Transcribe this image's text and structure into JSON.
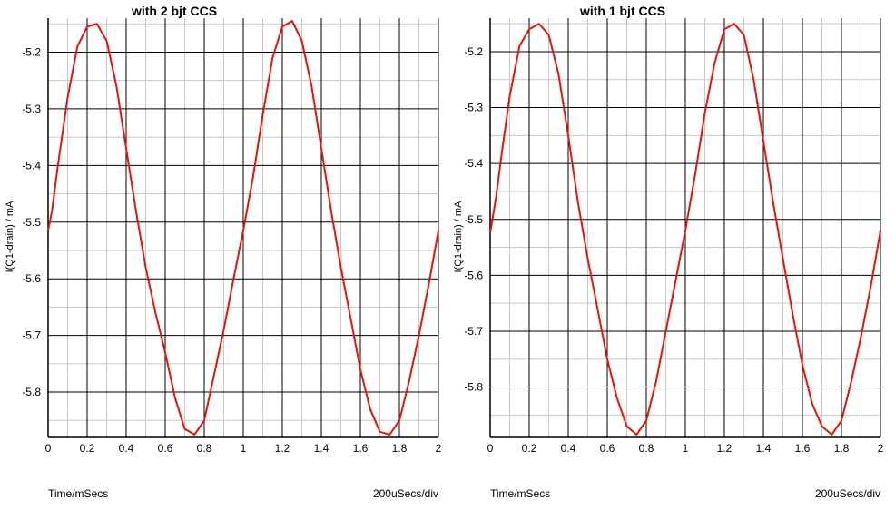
{
  "chart_data": [
    {
      "type": "line",
      "title": "with 2 bjt CCS",
      "ylabel": "I(Q1-drain) / mA",
      "xlabel": "Time/mSecs",
      "x_scale_note": "200uSecs/div",
      "xlim": [
        0,
        2
      ],
      "ylim": [
        -5.88,
        -5.14
      ],
      "x_ticks": [
        "0",
        "0.2",
        "0.4",
        "0.6",
        "0.8",
        "1",
        "1.2",
        "1.4",
        "1.6",
        "1.8",
        "2"
      ],
      "y_ticks": [
        "-5.2",
        "-5.3",
        "-5.4",
        "-5.5",
        "-5.6",
        "-5.7",
        "-5.8"
      ],
      "grid": true,
      "line_color": "#e8120c",
      "series": [
        {
          "x": [
            0,
            0.02,
            0.05,
            0.1,
            0.15,
            0.2,
            0.25,
            0.3,
            0.35,
            0.4,
            0.45,
            0.5,
            0.55,
            0.6,
            0.65,
            0.7,
            0.75,
            0.8,
            0.85,
            0.9,
            0.95,
            1.0,
            1.05,
            1.1,
            1.15,
            1.2,
            1.25,
            1.3,
            1.35,
            1.4,
            1.45,
            1.5,
            1.55,
            1.6,
            1.65,
            1.7,
            1.75,
            1.8,
            1.85,
            1.9,
            1.95,
            2.0
          ],
          "y": [
            -5.515,
            -5.48,
            -5.4,
            -5.28,
            -5.19,
            -5.155,
            -5.15,
            -5.18,
            -5.26,
            -5.37,
            -5.48,
            -5.58,
            -5.66,
            -5.73,
            -5.81,
            -5.865,
            -5.875,
            -5.85,
            -5.77,
            -5.69,
            -5.6,
            -5.515,
            -5.42,
            -5.31,
            -5.21,
            -5.155,
            -5.145,
            -5.18,
            -5.26,
            -5.37,
            -5.48,
            -5.58,
            -5.67,
            -5.76,
            -5.83,
            -5.87,
            -5.875,
            -5.85,
            -5.78,
            -5.7,
            -5.61,
            -5.515
          ]
        }
      ]
    },
    {
      "type": "line",
      "title": "with 1 bjt CCS",
      "ylabel": "I(Q1-drain) / mA",
      "xlabel": "Time/mSecs",
      "x_scale_note": "200uSecs/div",
      "xlim": [
        0,
        2
      ],
      "ylim": [
        -5.89,
        -5.14
      ],
      "x_ticks": [
        "0",
        "0.2",
        "0.4",
        "0.6",
        "0.8",
        "1",
        "1.2",
        "1.4",
        "1.6",
        "1.8",
        "2"
      ],
      "y_ticks": [
        "-5.2",
        "-5.3",
        "-5.4",
        "-5.5",
        "-5.6",
        "-5.7",
        "-5.8"
      ],
      "grid": true,
      "line_color": "#e8120c",
      "series": [
        {
          "x": [
            0,
            0.03,
            0.06,
            0.1,
            0.15,
            0.2,
            0.25,
            0.3,
            0.35,
            0.4,
            0.45,
            0.5,
            0.55,
            0.6,
            0.65,
            0.7,
            0.75,
            0.8,
            0.85,
            0.9,
            0.95,
            1.0,
            1.05,
            1.1,
            1.15,
            1.2,
            1.25,
            1.3,
            1.35,
            1.4,
            1.45,
            1.5,
            1.55,
            1.6,
            1.65,
            1.7,
            1.75,
            1.8,
            1.85,
            1.9,
            1.95,
            2.0
          ],
          "y": [
            -5.525,
            -5.46,
            -5.38,
            -5.28,
            -5.19,
            -5.16,
            -5.15,
            -5.17,
            -5.24,
            -5.35,
            -5.47,
            -5.57,
            -5.66,
            -5.75,
            -5.82,
            -5.87,
            -5.885,
            -5.86,
            -5.79,
            -5.7,
            -5.61,
            -5.52,
            -5.42,
            -5.31,
            -5.22,
            -5.16,
            -5.15,
            -5.17,
            -5.25,
            -5.36,
            -5.47,
            -5.57,
            -5.67,
            -5.76,
            -5.83,
            -5.87,
            -5.885,
            -5.86,
            -5.79,
            -5.71,
            -5.62,
            -5.52
          ]
        }
      ]
    }
  ]
}
